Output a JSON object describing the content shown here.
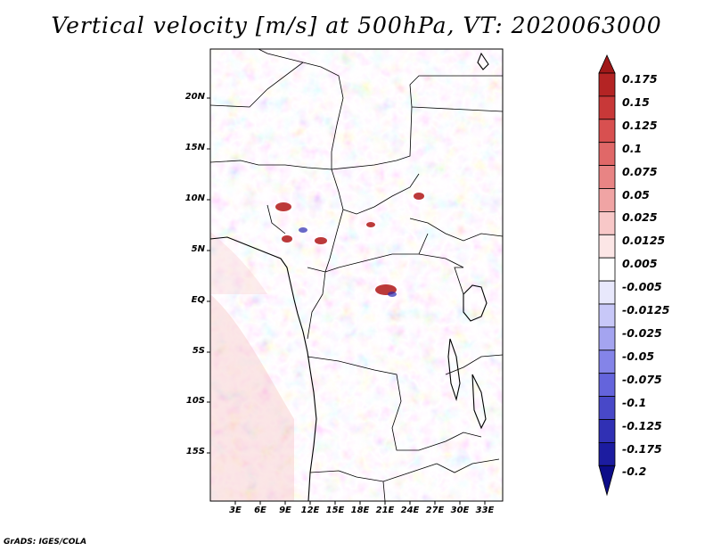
{
  "title": "Vertical velocity [m/s] at 500hPa, VT: 2020063000",
  "footer": "GrADS: IGES/COLA",
  "lat_labels": [
    "20N",
    "15N",
    "10N",
    "5N",
    "EQ",
    "5S",
    "10S",
    "15S"
  ],
  "lon_labels": [
    "3E",
    "6E",
    "9E",
    "12E",
    "15E",
    "18E",
    "21E",
    "24E",
    "27E",
    "30E",
    "33E"
  ],
  "colorbar": {
    "labels": [
      "0.175",
      "0.15",
      "0.125",
      "0.1",
      "0.075",
      "0.05",
      "0.025",
      "0.0125",
      "0.005",
      "-0.005",
      "-0.0125",
      "-0.025",
      "-0.05",
      "-0.075",
      "-0.1",
      "-0.125",
      "-0.175",
      "-0.2"
    ],
    "colors_top_to_bottom": [
      "#a01818",
      "#b42424",
      "#c83838",
      "#d85050",
      "#e06868",
      "#e88484",
      "#f0a4a4",
      "#f8c8c8",
      "#fce6e6",
      "#ffffff",
      "#e8e8fc",
      "#c8c8f8",
      "#a4a4f0",
      "#8484e8",
      "#6464dc",
      "#4848c8",
      "#3030b4",
      "#1c1ca0",
      "#0c0c88"
    ]
  }
}
